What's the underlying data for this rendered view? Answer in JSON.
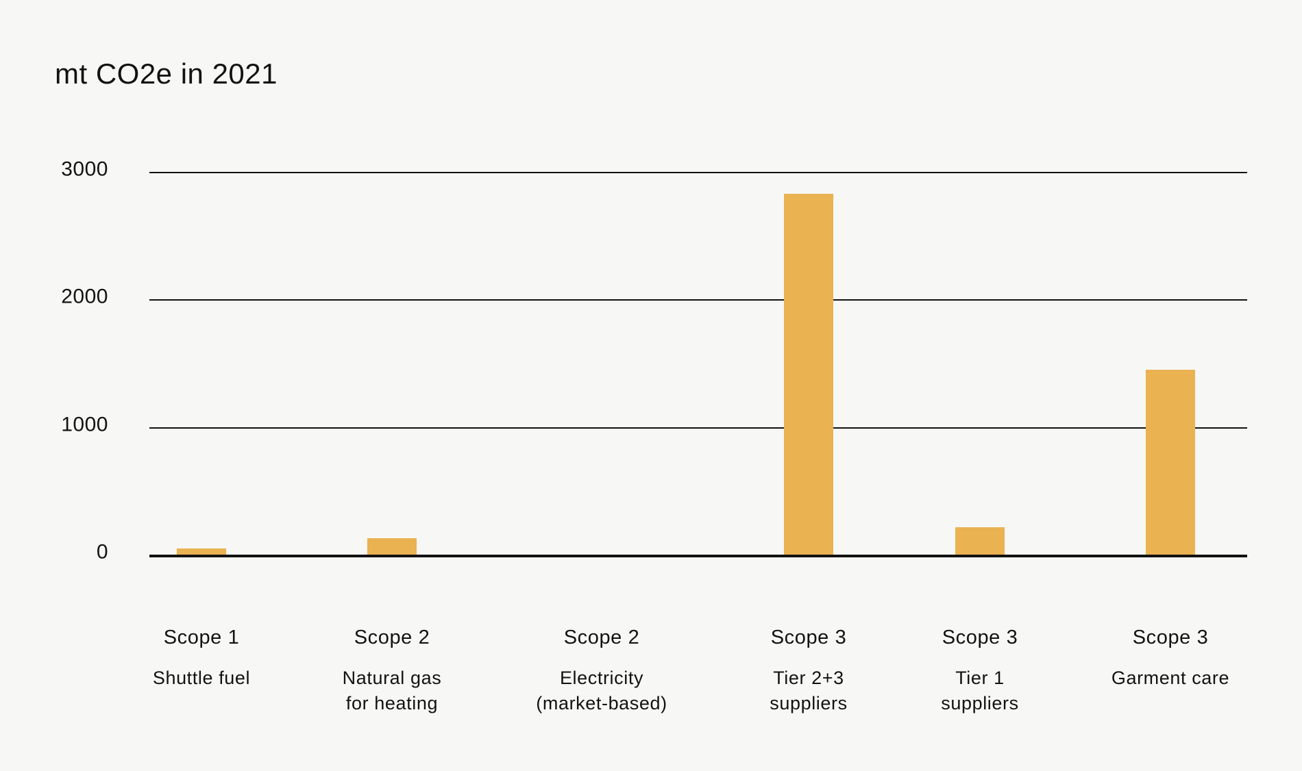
{
  "title": "mt CO2e in 2021",
  "colors": {
    "background": "#f7f7f5",
    "bar": "#eab251",
    "text": "#121212",
    "gridline": "#121212"
  },
  "chart_data": {
    "type": "bar",
    "title": "mt CO2e in 2021",
    "xlabel": "",
    "ylabel": "mt CO2e",
    "ylim": [
      0,
      3000
    ],
    "yticks": [
      0,
      1000,
      2000,
      3000
    ],
    "grid": true,
    "legend": false,
    "categories": [
      {
        "scope": "Scope 1",
        "lines": [
          "Shuttle fuel"
        ]
      },
      {
        "scope": "Scope 2",
        "lines": [
          "Natural gas",
          "for heating"
        ]
      },
      {
        "scope": "Scope 2",
        "lines": [
          "Electricity",
          "(market-based)"
        ]
      },
      {
        "scope": "Scope 3",
        "lines": [
          "Tier 2+3",
          "suppliers"
        ]
      },
      {
        "scope": "Scope 3",
        "lines": [
          "Tier 1",
          "suppliers"
        ]
      },
      {
        "scope": "Scope 3",
        "lines": [
          "Garment care"
        ]
      }
    ],
    "values": [
      50,
      130,
      0,
      2830,
      215,
      1450
    ]
  }
}
